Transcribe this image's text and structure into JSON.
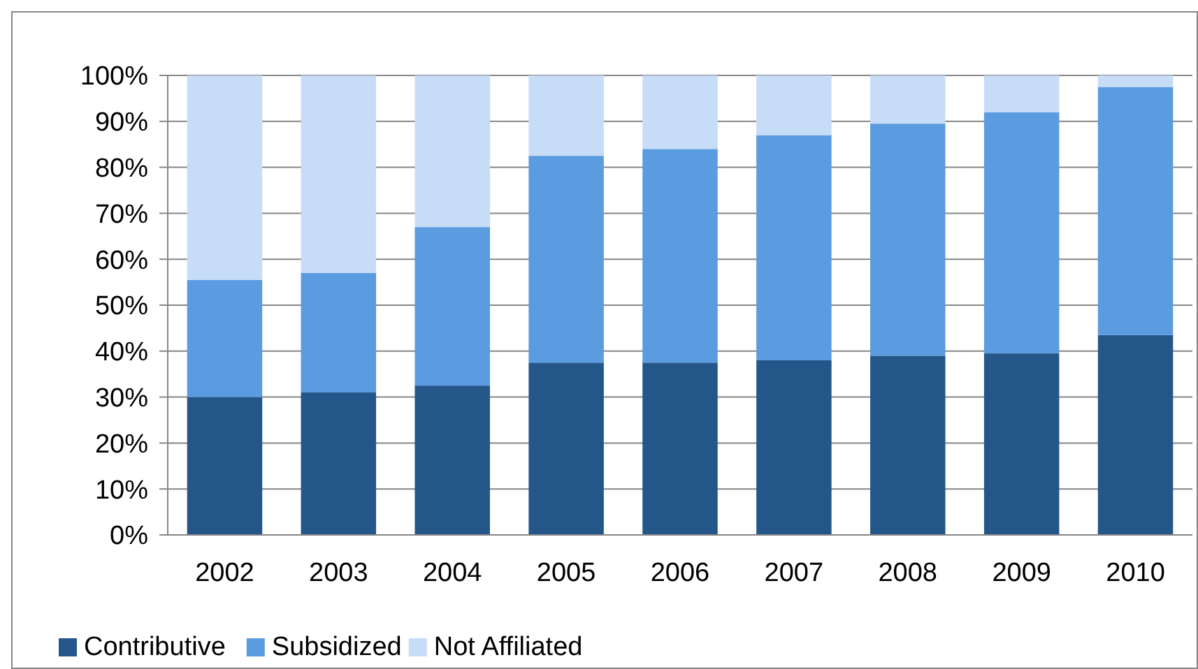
{
  "chart_data": {
    "type": "bar",
    "stacked": true,
    "categories": [
      "2002",
      "2003",
      "2004",
      "2005",
      "2006",
      "2007",
      "2008",
      "2009",
      "2010"
    ],
    "series": [
      {
        "name": "Contributive",
        "color": "#245689",
        "values": [
          30,
          31,
          32.5,
          37.5,
          37.5,
          38,
          39,
          39.5,
          43.5
        ]
      },
      {
        "name": "Subsidized",
        "color": "#5b9be0",
        "values": [
          25.5,
          26,
          34.5,
          45,
          46.5,
          49,
          50.5,
          52.5,
          54
        ]
      },
      {
        "name": "Not Affiliated",
        "color": "#c6dcf7",
        "values": [
          44.5,
          43,
          33,
          17.5,
          16,
          13,
          10.5,
          8,
          2.5
        ]
      }
    ],
    "ylim": [
      0,
      100
    ],
    "yticks": [
      {
        "value": 0,
        "label": "0%"
      },
      {
        "value": 10,
        "label": "10%"
      },
      {
        "value": 20,
        "label": "20%"
      },
      {
        "value": 30,
        "label": "30%"
      },
      {
        "value": 40,
        "label": "40%"
      },
      {
        "value": 50,
        "label": "50%"
      },
      {
        "value": 60,
        "label": "60%"
      },
      {
        "value": 70,
        "label": "70%"
      },
      {
        "value": 80,
        "label": "80%"
      },
      {
        "value": 90,
        "label": "90%"
      },
      {
        "value": 100,
        "label": "100%"
      }
    ],
    "grid": "y",
    "legend": "bottom left"
  }
}
